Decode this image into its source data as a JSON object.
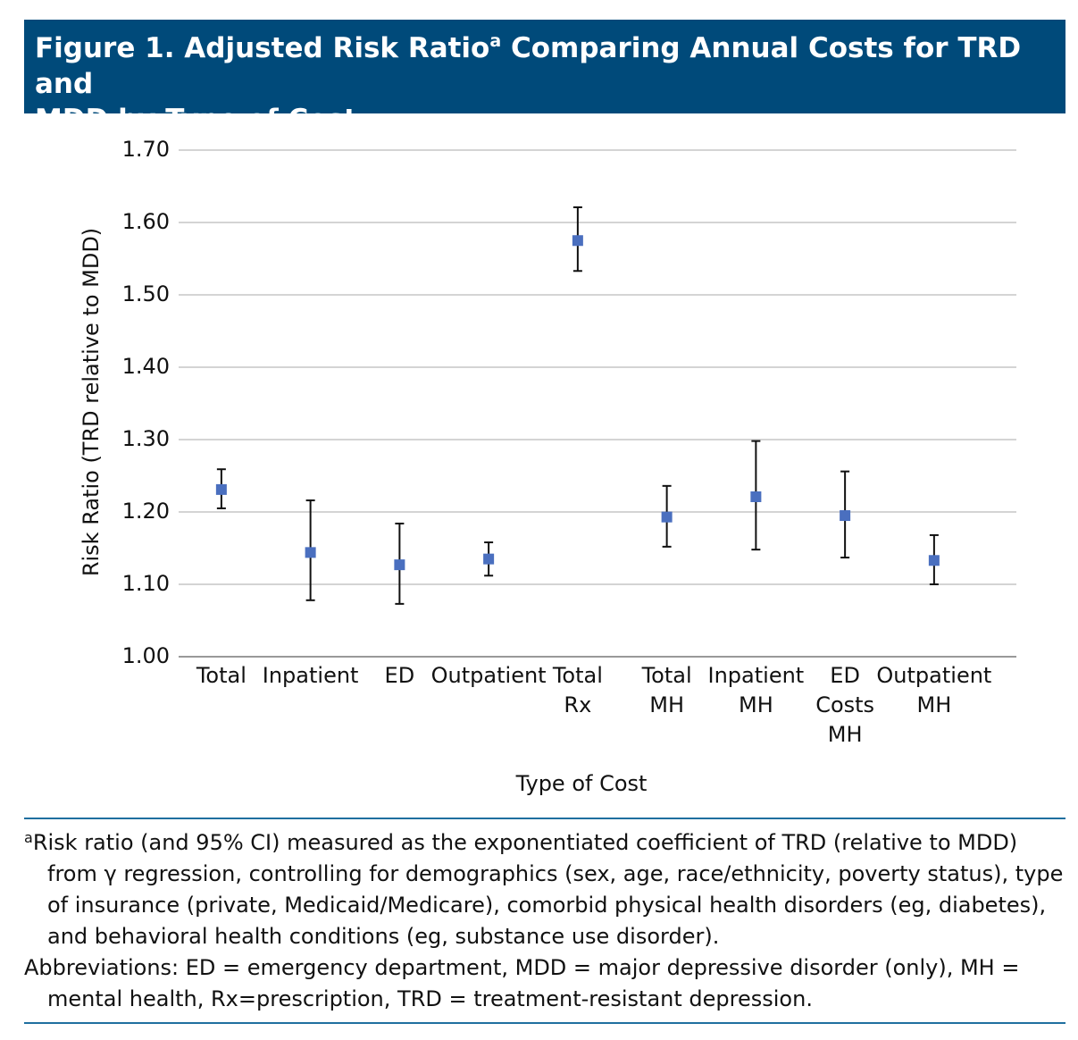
{
  "chart_data": {
    "type": "errorbar",
    "title_start": "Figure 1. Adjusted Risk Ratio",
    "title_superscript": "a",
    "title_end": "Comparing Annual Costs for TRD and",
    "title_line2": "MDD by Type of Cost",
    "y_label": "Risk Ratio (TRD relative to MDD)",
    "x_label": "Type of Cost",
    "categories": [
      [
        "Total"
      ],
      [
        "Inpatient"
      ],
      [
        "ED"
      ],
      [
        "Outpatient"
      ],
      [
        "Total",
        "Rx"
      ],
      [
        "Total",
        "MH"
      ],
      [
        "Inpatient",
        "MH"
      ],
      [
        "ED",
        "Costs",
        "MH"
      ],
      [
        "Outpatient",
        "MH"
      ]
    ],
    "series": [
      {
        "color": "#4a6fbf",
        "values": [
          1.231,
          1.144,
          1.127,
          1.135,
          1.575,
          1.193,
          1.221,
          1.195,
          1.133
        ],
        "lower": [
          1.205,
          1.078,
          1.073,
          1.112,
          1.533,
          1.152,
          1.148,
          1.137,
          1.1
        ],
        "upper": [
          1.259,
          1.216,
          1.184,
          1.158,
          1.621,
          1.236,
          1.298,
          1.256,
          1.168
        ]
      }
    ],
    "ylim": [
      1.0,
      1.7
    ],
    "yticks": [
      {
        "value": 1.0,
        "label": "1.00"
      },
      {
        "value": 1.1,
        "label": "1.10"
      },
      {
        "value": 1.2,
        "label": "1.20"
      },
      {
        "value": 1.3,
        "label": "1.30"
      },
      {
        "value": 1.4,
        "label": "1.40"
      },
      {
        "value": 1.5,
        "label": "1.50"
      },
      {
        "value": 1.6,
        "label": "1.60"
      },
      {
        "value": 1.7,
        "label": "1.70"
      }
    ],
    "grid": true
  },
  "footnotes": {
    "marker": "a",
    "text": "Risk ratio (and 95% CI) measured as the exponentiated coefficient of TRD (relative to MDD) from γ regression, controlling for demographics (sex, age, race/ethnicity, poverty status), type of insurance (private, Medicaid/Medicare), comorbid physical health disorders (eg, diabetes), and behavioral health conditions (eg, substance use disorder).",
    "abbreviations": "Abbreviations: ED = emergency department, MDD = major depressive disorder (only), MH = mental health, Rx=prescription, TRD = treatment-resistant depression."
  }
}
